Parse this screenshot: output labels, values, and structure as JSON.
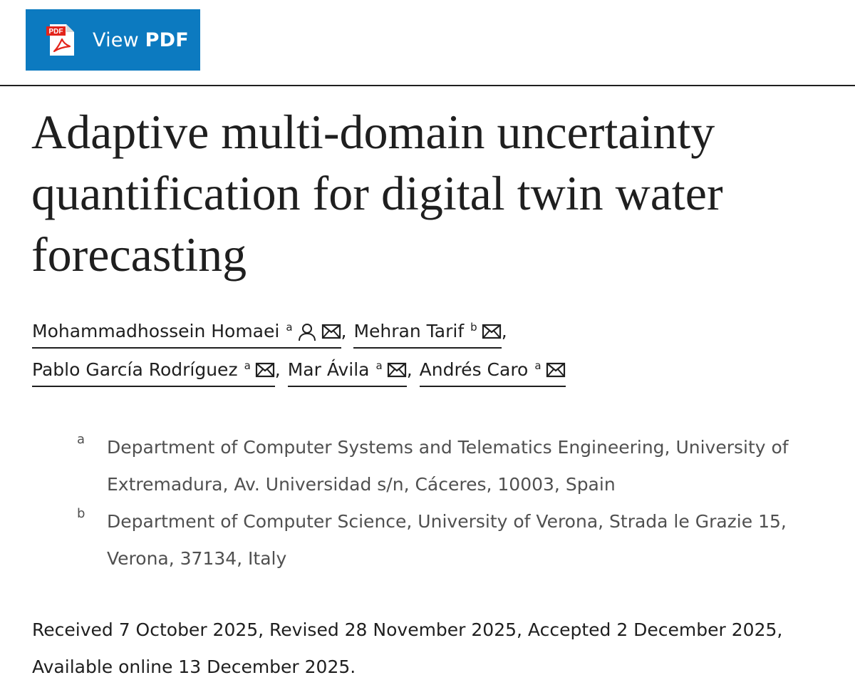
{
  "button": {
    "pdf_icon_label": "PDF",
    "label_prefix": "View ",
    "label_strong": "PDF"
  },
  "article": {
    "title": "Adaptive multi-domain uncertainty quantification for digital twin water forecasting",
    "authors": [
      {
        "name": "Mohammadhossein Homaei",
        "aff": "a",
        "icons": [
          "person-icon",
          "email-icon"
        ]
      },
      {
        "name": "Mehran Tarif",
        "aff": "b",
        "icons": [
          "email-icon"
        ]
      },
      {
        "name": "Pablo García Rodríguez",
        "aff": "a",
        "icons": [
          "email-icon"
        ]
      },
      {
        "name": "Mar Ávila",
        "aff": "a",
        "icons": [
          "email-icon"
        ]
      },
      {
        "name": "Andrés Caro",
        "aff": "a",
        "icons": [
          "email-icon"
        ]
      }
    ],
    "separator": ",",
    "affiliations": [
      {
        "label": "a",
        "text": "Department of Computer Systems and Telematics Engineering, University of Extremadura, Av. Universidad s/n, Cáceres, 10003, Spain"
      },
      {
        "label": "b",
        "text": "Department of Computer Science, University of Verona, Strada le Grazie 15, Verona, 37134, Italy"
      }
    ],
    "dates": "Received 7 October 2025, Revised 28 November 2025, Accepted 2 December 2025, Available online 13 December 2025."
  },
  "colors": {
    "button_bg": "#0c7ac0",
    "pdf_icon_red": "#e3241b",
    "text": "#1f1f1f",
    "affiliation_text": "#505050"
  }
}
